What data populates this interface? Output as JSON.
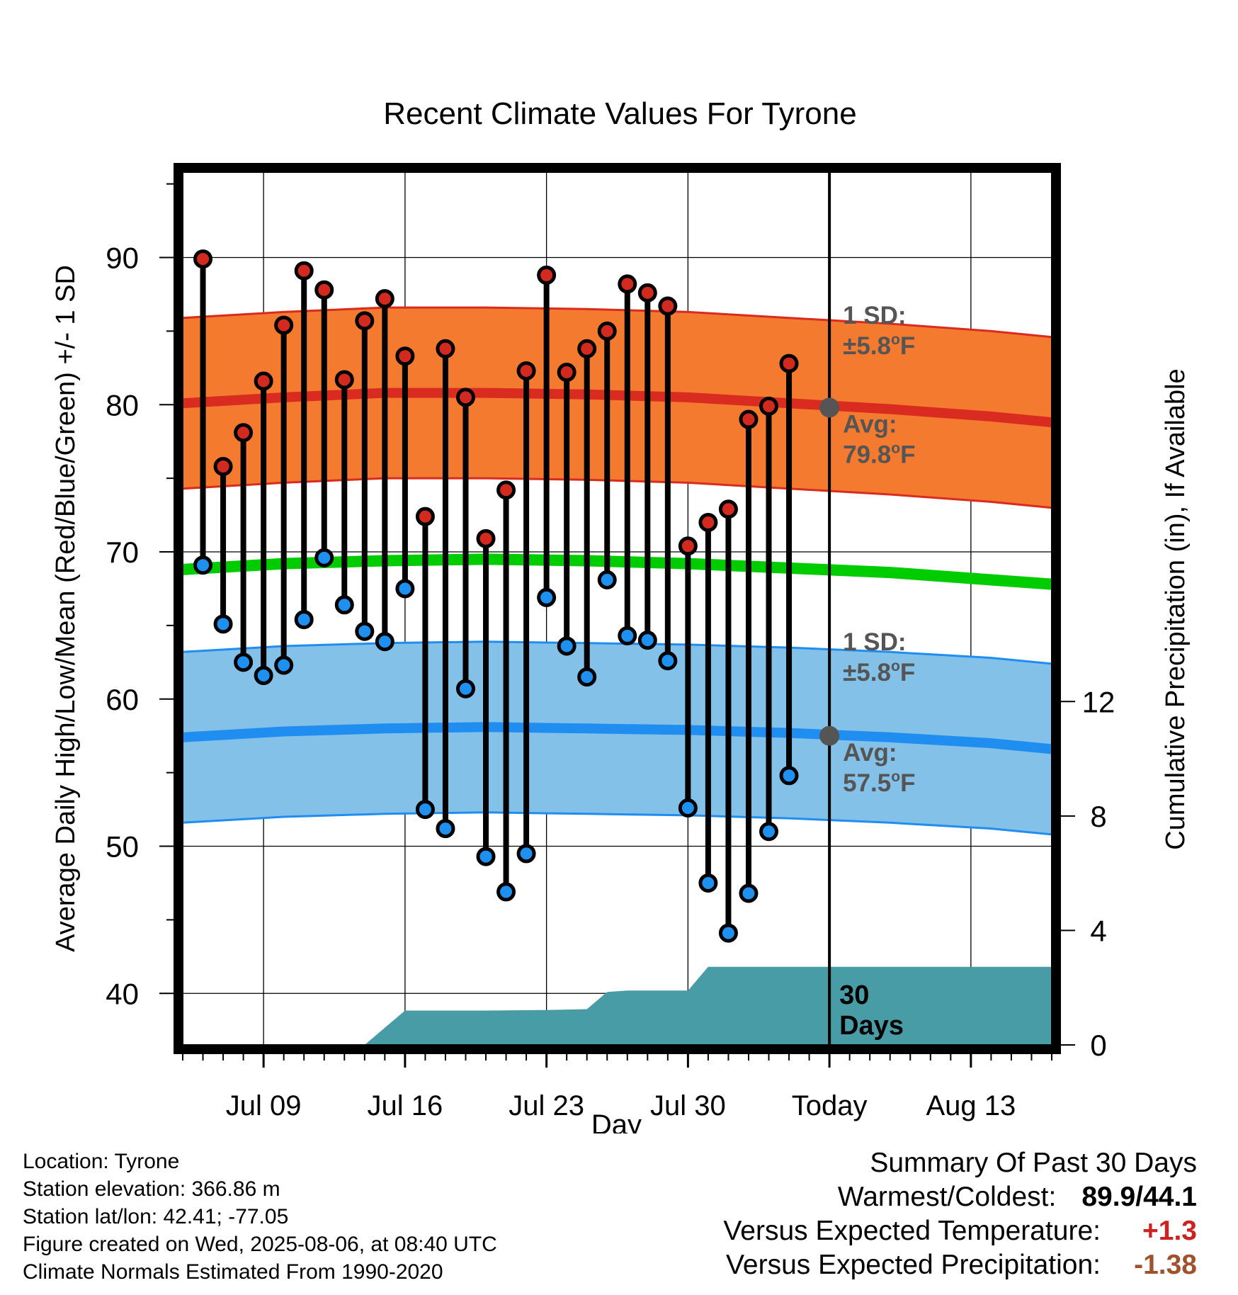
{
  "chart_data": {
    "type": "line",
    "title": "Recent Climate Values For Tyrone",
    "xlabel": "Day",
    "ylabel": "Average Daily High/Low/Mean (Red/Blue/Green) +/- 1 SD",
    "ylabel_right": "Cumulative Precipitation (in), If Available",
    "ylim": [
      36.5,
      95.8
    ],
    "ylim_right": [
      0,
      30.5
    ],
    "y_ticks": [
      40,
      50,
      60,
      70,
      80,
      90
    ],
    "y_ticks_right": [
      0,
      4,
      8,
      12
    ],
    "grid": true,
    "x_range": [
      "2025-07-05",
      "2025-08-17"
    ],
    "x_ticks": [
      {
        "date": "2025-07-09",
        "label": "Jul 09"
      },
      {
        "date": "2025-07-16",
        "label": "Jul 16"
      },
      {
        "date": "2025-07-23",
        "label": "Jul 23"
      },
      {
        "date": "2025-07-30",
        "label": "Jul 30"
      },
      {
        "date": "2025-08-06",
        "label": "Today"
      },
      {
        "date": "2025-08-13",
        "label": "Aug 13"
      }
    ],
    "today": "2025-08-06",
    "period_label": [
      "30",
      "Days"
    ],
    "observed": {
      "dates": [
        "2025-07-06",
        "2025-07-07",
        "2025-07-08",
        "2025-07-09",
        "2025-07-10",
        "2025-07-11",
        "2025-07-12",
        "2025-07-13",
        "2025-07-14",
        "2025-07-15",
        "2025-07-16",
        "2025-07-17",
        "2025-07-18",
        "2025-07-19",
        "2025-07-20",
        "2025-07-21",
        "2025-07-22",
        "2025-07-23",
        "2025-07-24",
        "2025-07-25",
        "2025-07-26",
        "2025-07-27",
        "2025-07-28",
        "2025-07-29",
        "2025-07-30",
        "2025-07-31",
        "2025-08-01",
        "2025-08-02",
        "2025-08-03",
        "2025-08-04",
        "2025-08-05"
      ],
      "high": [
        89.9,
        75.8,
        78.1,
        81.6,
        85.4,
        89.1,
        87.8,
        81.7,
        85.7,
        87.2,
        83.3,
        72.4,
        83.8,
        80.5,
        70.9,
        74.2,
        82.3,
        88.8,
        82.2,
        83.8,
        85.0,
        88.2,
        87.6,
        86.7,
        70.4,
        72.0,
        72.9,
        79.0,
        79.9,
        82.8,
        null
      ],
      "low": [
        69.1,
        65.1,
        62.5,
        61.6,
        62.3,
        65.4,
        69.6,
        66.4,
        64.6,
        63.9,
        67.5,
        52.5,
        51.2,
        60.7,
        49.3,
        46.9,
        49.5,
        66.9,
        63.6,
        61.5,
        68.1,
        64.3,
        64.0,
        62.6,
        52.6,
        47.5,
        44.1,
        46.8,
        51.0,
        54.8,
        null
      ]
    },
    "normals": {
      "dates": [
        "2025-07-05",
        "2025-07-10",
        "2025-07-15",
        "2025-07-20",
        "2025-07-25",
        "2025-07-30",
        "2025-08-04",
        "2025-08-09",
        "2025-08-14",
        "2025-08-17"
      ],
      "high_avg": [
        80.1,
        80.5,
        80.8,
        80.8,
        80.7,
        80.5,
        80.1,
        79.7,
        79.2,
        78.8
      ],
      "low_avg": [
        57.4,
        57.8,
        58.0,
        58.1,
        58.0,
        57.9,
        57.7,
        57.4,
        57.0,
        56.6
      ],
      "mean": [
        68.8,
        69.2,
        69.4,
        69.5,
        69.4,
        69.2,
        68.9,
        68.6,
        68.1,
        67.8
      ],
      "sd": 5.8
    },
    "precip_cumulative": {
      "dates": [
        "2025-07-14",
        "2025-07-15",
        "2025-07-16",
        "2025-07-17",
        "2025-07-20",
        "2025-07-23",
        "2025-07-25",
        "2025-07-26",
        "2025-07-27",
        "2025-07-30",
        "2025-07-31",
        "2025-08-01",
        "2025-08-17"
      ],
      "values": [
        0.0,
        0.6,
        1.2,
        1.2,
        1.2,
        1.22,
        1.25,
        1.85,
        1.9,
        1.9,
        2.73,
        2.73,
        2.73
      ]
    },
    "annotations": {
      "high_sd": [
        "1 SD:",
        "±5.8°F"
      ],
      "high_avg": [
        "Avg:",
        "79.8°F"
      ],
      "low_sd": [
        "1 SD:",
        "±5.8°F"
      ],
      "low_avg": [
        "Avg:",
        "57.5°F"
      ],
      "high_avg_value": 79.8,
      "low_avg_value": 57.5
    },
    "colors": {
      "high_band": "#f47a2f",
      "high_line": "#d92b1f",
      "low_band": "#84c1e8",
      "low_line": "#1f8ef0",
      "mean_line": "#00cc00",
      "precip": "#479ca5",
      "high_dot": "#d32a20",
      "low_dot": "#1e90f0",
      "today_dot": "#555555",
      "annotation": "#555555"
    }
  },
  "location": "Location: Tyrone",
  "elevation": "Station elevation: 366.86 m",
  "latlon": "Station lat/lon: 42.41; -77.05",
  "created": "Figure created on Wed, 2025-08-06, at 08:40 UTC",
  "normals_source": "Climate Normals Estimated From 1990-2020",
  "summary": {
    "title": "Summary Of Past 30 Days",
    "warm_cold_label": "Warmest/Coldest:",
    "warm_cold_value": "89.9/44.1",
    "temp_label": "Versus Expected Temperature:",
    "temp_value": "+1.3",
    "temp_color": "#cc2222",
    "precip_label": "Versus Expected Precipitation:",
    "precip_value": "-1.38",
    "precip_color": "#a0522d"
  }
}
